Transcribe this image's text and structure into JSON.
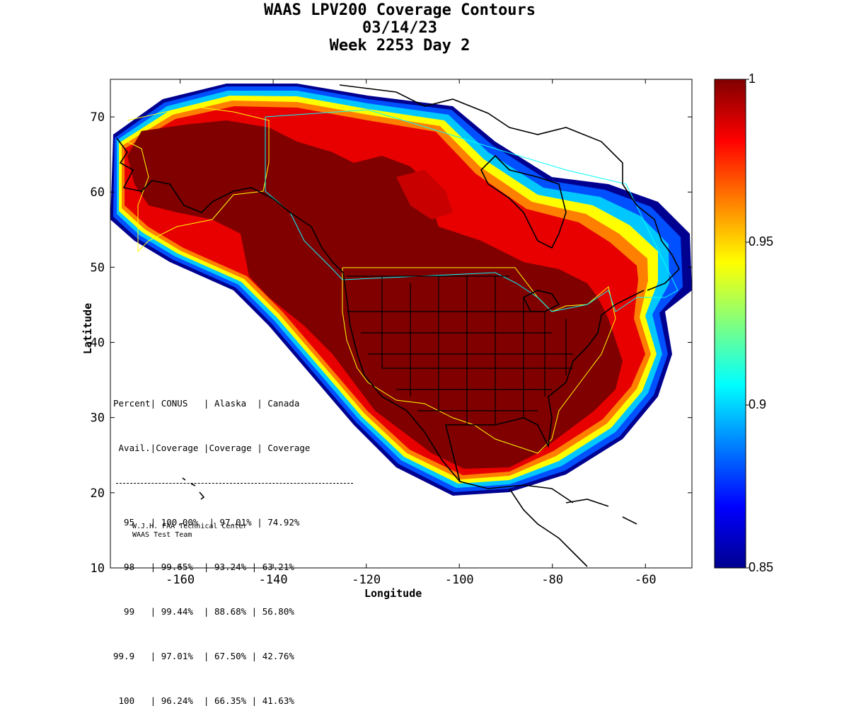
{
  "title": {
    "line1": "WAAS LPV200 Coverage Contours",
    "line2": "03/14/23",
    "line3": "Week 2253 Day 2"
  },
  "axes": {
    "xlabel": "Longitude",
    "ylabel": "Latitude",
    "xticks": [
      "-160",
      "-140",
      "-120",
      "-100",
      "-80",
      "-60"
    ],
    "yticks": [
      "70",
      "60",
      "50",
      "40",
      "30",
      "20",
      "10"
    ],
    "xlim": [
      -175,
      -50
    ],
    "ylim": [
      10,
      75
    ]
  },
  "colorbar": {
    "ticks": [
      "1",
      "0.95",
      "0.9",
      "0.85"
    ],
    "range": [
      0.85,
      1
    ],
    "colormap": "jet"
  },
  "table": {
    "header1": "Percent| CONUS   | Alaska  | Canada",
    "header2": " Avail.|Coverage |Coverage | Coverage",
    "rows": [
      "  95   | 100.00%  | 97.01% | 74.92%",
      "  98   | 99.65%  | 93.24% | 63.21%",
      "  99   | 99.44%  | 88.68% | 56.80%",
      "99.9   | 97.01%  | 67.50% | 42.76%",
      " 100   | 96.24%  | 66.35% | 41.63%"
    ]
  },
  "credit": {
    "line1": "W.J.H. FAA Technical Center",
    "line2": "WAAS Test Team"
  },
  "colors": {
    "core": "#800000",
    "red": "#e00000",
    "orange": "#ff8000",
    "yellow": "#ffff00",
    "cyan": "#00c0ff",
    "blue": "#0040ff",
    "navy": "#000090",
    "boundary_yellow": "#ffff00",
    "boundary_cyan": "#00ffff"
  }
}
